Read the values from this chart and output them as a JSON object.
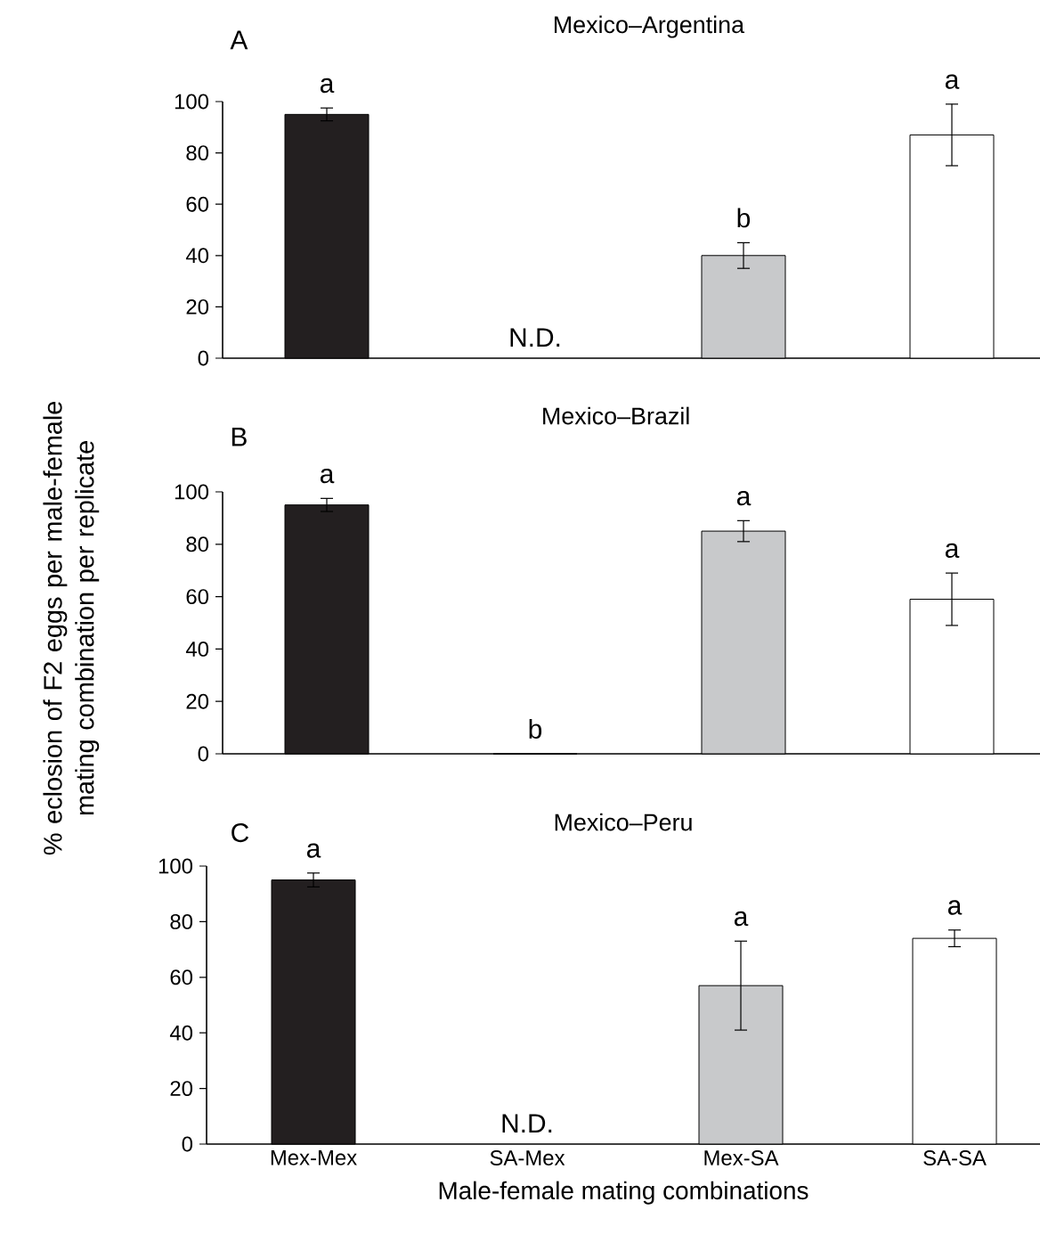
{
  "chart_data": [
    {
      "type": "bar",
      "title": "Mexico–Argentina",
      "categories": [
        "Mex-Mex",
        "SA-Mex",
        "Mex-SA",
        "SA-SA"
      ],
      "values": [
        95,
        null,
        40,
        87
      ],
      "colors": [
        "#231f20",
        "#c8c9cb",
        "#c8c9cb",
        "#ffffff"
      ],
      "errors": [
        2.5,
        null,
        5,
        [
          75,
          99
        ]
      ],
      "ylim": [
        0,
        100
      ],
      "yticks": [
        0,
        20,
        40,
        60,
        80,
        100
      ],
      "tick_labels": "y",
      "annotations": [
        "A",
        {
          "text": "a",
          "x": "Mex-Mex",
          "y": 97.5
        },
        "N.D.",
        {
          "text": "b",
          "x": "Mex-SA",
          "y": 45
        },
        {
          "text": "a",
          "x": "SA-SA",
          "y": 99
        }
      ]
    },
    {
      "type": "bar",
      "title": "Mexico–Brazil",
      "ylabel": "% eclosion of F2 eggs per male-female mating combination per replicate",
      "categories": [
        "Mex-Mex",
        "SA-Mex",
        "Mex-SA",
        "SA-SA"
      ],
      "values": [
        95,
        0,
        85,
        59
      ],
      "colors": [
        "#231f20",
        "#231f20",
        "#c8c9cb",
        "#ffffff"
      ],
      "errors": [
        2.5,
        null,
        [
          81,
          89
        ],
        [
          49,
          69
        ]
      ],
      "ylim": [
        0,
        100
      ],
      "yticks": [
        0,
        20,
        40,
        60,
        80,
        100
      ],
      "tick_labels": "y",
      "annotations": [
        "B",
        {
          "text": "a",
          "x": "Mex-Mex",
          "y": 97.5
        },
        {
          "text": "b",
          "x": "SA-Mex",
          "y": 0
        },
        {
          "text": "a",
          "x": "Mex-SA",
          "y": 89
        },
        {
          "text": "a",
          "x": "SA-SA",
          "y": 69
        }
      ]
    },
    {
      "type": "bar",
      "title": "Mexico–Peru",
      "xlabel": "Male-female mating combinations",
      "categories": [
        "Mex-Mex",
        "SA-Mex",
        "Mex-SA",
        "SA-SA"
      ],
      "values": [
        95,
        null,
        57,
        74
      ],
      "colors": [
        "#231f20",
        "#c8c9cb",
        "#c8c9cb",
        "#ffffff"
      ],
      "errors": [
        2.5,
        null,
        [
          41,
          73
        ],
        [
          71,
          77
        ]
      ],
      "ylim": [
        0,
        100
      ],
      "yticks": [
        0,
        20,
        40,
        60,
        80,
        100
      ],
      "annotations": [
        "C",
        {
          "text": "a",
          "x": "Mex-Mex",
          "y": 97.5
        },
        "N.D.",
        {
          "text": "a",
          "x": "Mex-SA",
          "y": 73
        },
        {
          "text": "a",
          "x": "SA-SA",
          "y": 77
        }
      ]
    }
  ]
}
